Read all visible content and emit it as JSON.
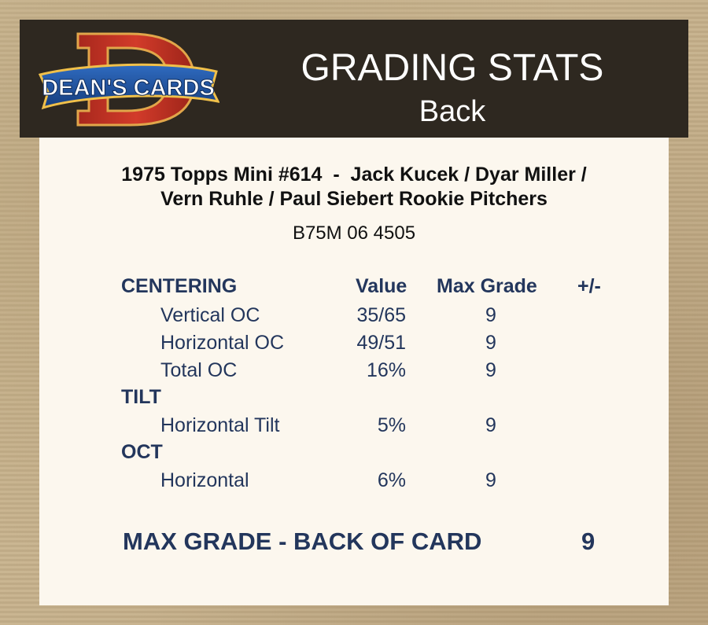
{
  "header": {
    "logo_text": "DEAN'S CARDS",
    "logo_letter": "D",
    "title": "GRADING STATS",
    "subtitle": "Back"
  },
  "card": {
    "title_line1": "1975 Topps Mini #614  -  Jack Kucek / Dyar Miller /",
    "title_line2": "Vern Ruhle / Paul Siebert Rookie Pitchers",
    "cert": "B75M 06 4505"
  },
  "columns": {
    "value": "Value",
    "max_grade": "Max Grade",
    "plus_minus": "+/-"
  },
  "sections": {
    "centering": {
      "title": "CENTERING",
      "rows": [
        {
          "label": "Vertical OC",
          "value": "35/65",
          "max_grade": "9"
        },
        {
          "label": "Horizontal OC",
          "value": "49/51",
          "max_grade": "9"
        },
        {
          "label": "Total OC",
          "value": "16%",
          "max_grade": "9"
        }
      ]
    },
    "tilt": {
      "title": "TILT",
      "rows": [
        {
          "label": "Horizontal Tilt",
          "value": "5%",
          "max_grade": "9"
        }
      ]
    },
    "oct": {
      "title": "OCT",
      "rows": [
        {
          "label": "Horizontal",
          "value": "6%",
          "max_grade": "9"
        }
      ]
    }
  },
  "total": {
    "label": "MAX GRADE - BACK OF CARD",
    "value": "9"
  },
  "colors": {
    "header_bg": "#2e2820",
    "panel_bg": "#fcf7ee",
    "text_navy": "#23365c",
    "logo_red": "#c0392b",
    "logo_blue": "#1f4f9a"
  }
}
